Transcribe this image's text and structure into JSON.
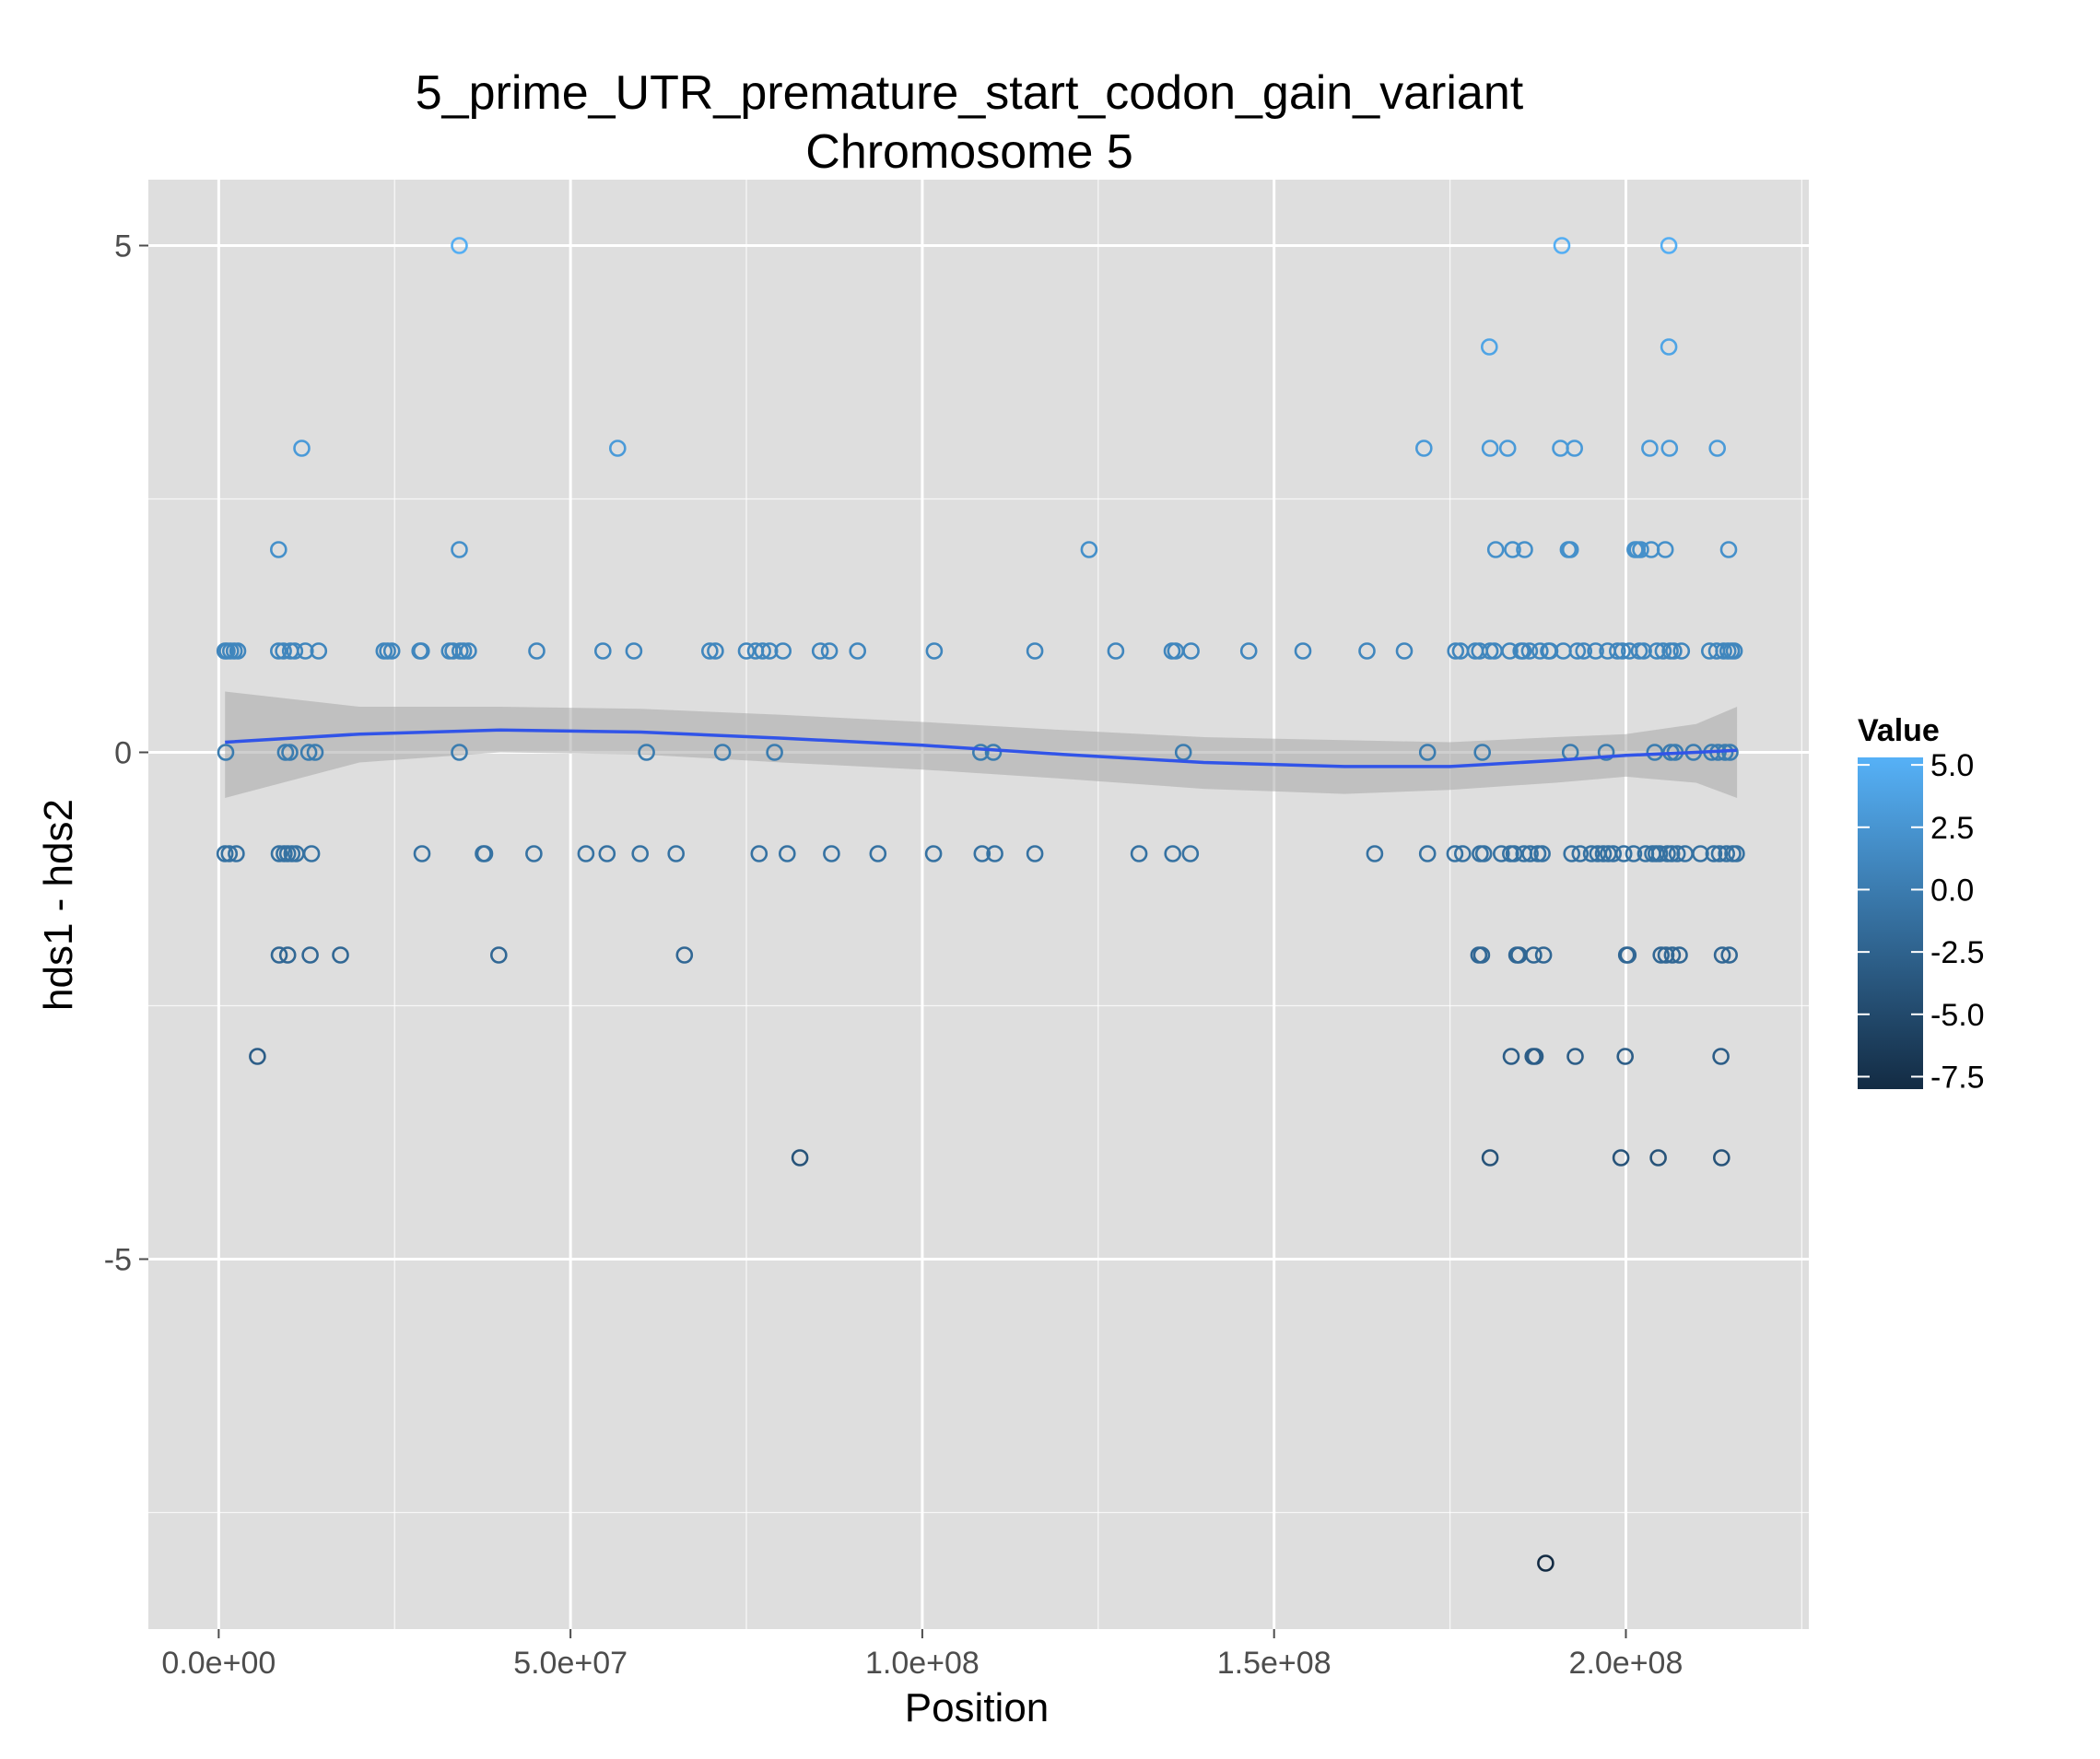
{
  "chart_data": {
    "type": "scatter",
    "title": "5_prime_UTR_premature_start_codon_gain_variant",
    "subtitle": "Chromosome 5",
    "xlabel": "Position",
    "ylabel": "hds1 - hds2",
    "xlim": [
      -10000000.0,
      226000000.0
    ],
    "ylim": [
      -8.65,
      5.65
    ],
    "x_ticks": [
      0,
      50000000,
      100000000,
      150000000,
      200000000
    ],
    "x_tick_labels": [
      "0.0e+00",
      "5.0e+07",
      "1.0e+08",
      "1.5e+08",
      "2.0e+08"
    ],
    "y_ticks": [
      5,
      0,
      -5
    ],
    "y_tick_labels": [
      "5",
      "0",
      "-5"
    ],
    "grid": true,
    "legend": {
      "title": "Value",
      "placement": "right",
      "labels": [
        "5.0",
        "2.5",
        "0.0",
        "-2.5",
        "-5.0",
        "-7.5"
      ],
      "values": [
        5,
        2.5,
        0,
        -2.5,
        -5,
        -7.5
      ],
      "range": [
        -8,
        5.3
      ]
    },
    "colors": {
      "panel": "#dedede",
      "grid": "#ffffff",
      "smooth_line": "#3154e8",
      "ribbon": "#a8a8a8",
      "high": "#56b1f7",
      "low": "#132b43"
    },
    "points": [
      {
        "x": 900000,
        "y": 1
      },
      {
        "x": 1200000,
        "y": 1
      },
      {
        "x": 1700000,
        "y": 1
      },
      {
        "x": 2200000,
        "y": 1
      },
      {
        "x": 2700000,
        "y": 1
      },
      {
        "x": 1000000,
        "y": 0
      },
      {
        "x": 900000,
        "y": -1
      },
      {
        "x": 1500000,
        "y": -1
      },
      {
        "x": 2500000,
        "y": -1
      },
      {
        "x": 5500000,
        "y": -3
      },
      {
        "x": 8500000,
        "y": 2
      },
      {
        "x": 8500000,
        "y": 1
      },
      {
        "x": 9200000,
        "y": 1
      },
      {
        "x": 10200000,
        "y": 1
      },
      {
        "x": 10800000,
        "y": 1
      },
      {
        "x": 9500000,
        "y": 0
      },
      {
        "x": 10100000,
        "y": 0
      },
      {
        "x": 8600000,
        "y": -1
      },
      {
        "x": 9300000,
        "y": -1
      },
      {
        "x": 9800000,
        "y": -1
      },
      {
        "x": 10400000,
        "y": -1
      },
      {
        "x": 11000000,
        "y": -1
      },
      {
        "x": 8600000,
        "y": -2
      },
      {
        "x": 9800000,
        "y": -2
      },
      {
        "x": 11800000,
        "y": 3
      },
      {
        "x": 12300000,
        "y": 1
      },
      {
        "x": 12800000,
        "y": 0
      },
      {
        "x": 13700000,
        "y": 0
      },
      {
        "x": 13200000,
        "y": -1
      },
      {
        "x": 13000000,
        "y": -2
      },
      {
        "x": 14200000,
        "y": 1
      },
      {
        "x": 17300000,
        "y": -2
      },
      {
        "x": 23500000,
        "y": 1
      },
      {
        "x": 24000000,
        "y": 1
      },
      {
        "x": 24600000,
        "y": 1
      },
      {
        "x": 28600000,
        "y": 1
      },
      {
        "x": 28800000,
        "y": 1
      },
      {
        "x": 28900000,
        "y": -1
      },
      {
        "x": 32800000,
        "y": 1
      },
      {
        "x": 33300000,
        "y": 1
      },
      {
        "x": 34200000,
        "y": 5
      },
      {
        "x": 34200000,
        "y": 2
      },
      {
        "x": 34300000,
        "y": 1
      },
      {
        "x": 34800000,
        "y": 1
      },
      {
        "x": 35500000,
        "y": 1
      },
      {
        "x": 34200000,
        "y": 0
      },
      {
        "x": 37600000,
        "y": -1
      },
      {
        "x": 37800000,
        "y": -1
      },
      {
        "x": 39800000,
        "y": -2
      },
      {
        "x": 44800000,
        "y": -1
      },
      {
        "x": 45200000,
        "y": 1
      },
      {
        "x": 52200000,
        "y": -1
      },
      {
        "x": 54600000,
        "y": 1
      },
      {
        "x": 55200000,
        "y": -1
      },
      {
        "x": 56700000,
        "y": 3
      },
      {
        "x": 59000000,
        "y": 1
      },
      {
        "x": 59900000,
        "y": -1
      },
      {
        "x": 60800000,
        "y": 0
      },
      {
        "x": 65000000,
        "y": -1
      },
      {
        "x": 66200000,
        "y": -2
      },
      {
        "x": 69800000,
        "y": 1
      },
      {
        "x": 70600000,
        "y": 1
      },
      {
        "x": 71600000,
        "y": 0
      },
      {
        "x": 75000000,
        "y": 1
      },
      {
        "x": 76300000,
        "y": 1
      },
      {
        "x": 76800000,
        "y": -1
      },
      {
        "x": 77300000,
        "y": 1
      },
      {
        "x": 78300000,
        "y": 1
      },
      {
        "x": 79000000,
        "y": 0
      },
      {
        "x": 80200000,
        "y": 1
      },
      {
        "x": 80800000,
        "y": -1
      },
      {
        "x": 82600000,
        "y": -4
      },
      {
        "x": 85500000,
        "y": 1
      },
      {
        "x": 86800000,
        "y": 1
      },
      {
        "x": 87100000,
        "y": -1
      },
      {
        "x": 90800000,
        "y": 1
      },
      {
        "x": 93700000,
        "y": -1
      },
      {
        "x": 101700000,
        "y": 1
      },
      {
        "x": 101600000,
        "y": -1
      },
      {
        "x": 108300000,
        "y": 0
      },
      {
        "x": 108500000,
        "y": -1
      },
      {
        "x": 110100000,
        "y": 0
      },
      {
        "x": 110300000,
        "y": -1
      },
      {
        "x": 116000000,
        "y": 1
      },
      {
        "x": 116000000,
        "y": -1
      },
      {
        "x": 123700000,
        "y": 2
      },
      {
        "x": 127500000,
        "y": 1
      },
      {
        "x": 130800000,
        "y": -1
      },
      {
        "x": 135500000,
        "y": 1
      },
      {
        "x": 136000000,
        "y": 1
      },
      {
        "x": 135600000,
        "y": -1
      },
      {
        "x": 137100000,
        "y": 0
      },
      {
        "x": 138200000,
        "y": 1
      },
      {
        "x": 138100000,
        "y": -1
      },
      {
        "x": 146400000,
        "y": 1
      },
      {
        "x": 154100000,
        "y": 1
      },
      {
        "x": 163200000,
        "y": 1
      },
      {
        "x": 164300000,
        "y": -1
      },
      {
        "x": 168500000,
        "y": 1
      },
      {
        "x": 171300000,
        "y": 3
      },
      {
        "x": 171800000,
        "y": 0
      },
      {
        "x": 171800000,
        "y": -1
      },
      {
        "x": 175800000,
        "y": 1
      },
      {
        "x": 176500000,
        "y": 1
      },
      {
        "x": 175700000,
        "y": -1
      },
      {
        "x": 176800000,
        "y": -1
      },
      {
        "x": 178600000,
        "y": 1
      },
      {
        "x": 179200000,
        "y": 1
      },
      {
        "x": 179600000,
        "y": 0
      },
      {
        "x": 179300000,
        "y": -1
      },
      {
        "x": 179800000,
        "y": -1
      },
      {
        "x": 179100000,
        "y": -2
      },
      {
        "x": 179500000,
        "y": -2
      },
      {
        "x": 180600000,
        "y": 4
      },
      {
        "x": 180700000,
        "y": 3
      },
      {
        "x": 181500000,
        "y": 2
      },
      {
        "x": 180700000,
        "y": 1
      },
      {
        "x": 181300000,
        "y": 1
      },
      {
        "x": 180700000,
        "y": -4
      },
      {
        "x": 182300000,
        "y": -1
      },
      {
        "x": 183200000,
        "y": 3
      },
      {
        "x": 183900000,
        "y": 2
      },
      {
        "x": 183700000,
        "y": -3
      },
      {
        "x": 183500000,
        "y": 1
      },
      {
        "x": 183600000,
        "y": -1
      },
      {
        "x": 184100000,
        "y": -1
      },
      {
        "x": 184500000,
        "y": -2
      },
      {
        "x": 184800000,
        "y": -2
      },
      {
        "x": 185100000,
        "y": 1
      },
      {
        "x": 185400000,
        "y": 1
      },
      {
        "x": 185500000,
        "y": -1
      },
      {
        "x": 185600000,
        "y": 2
      },
      {
        "x": 186300000,
        "y": 1
      },
      {
        "x": 186400000,
        "y": -1
      },
      {
        "x": 186800000,
        "y": -3
      },
      {
        "x": 186900000,
        "y": -2
      },
      {
        "x": 187100000,
        "y": -3
      },
      {
        "x": 187500000,
        "y": -1
      },
      {
        "x": 187800000,
        "y": 1
      },
      {
        "x": 188100000,
        "y": -1
      },
      {
        "x": 188300000,
        "y": -2
      },
      {
        "x": 188600000,
        "y": -8
      },
      {
        "x": 189000000,
        "y": 1
      },
      {
        "x": 189200000,
        "y": 1
      },
      {
        "x": 190700000,
        "y": 3
      },
      {
        "x": 190900000,
        "y": 5
      },
      {
        "x": 191100000,
        "y": 1
      },
      {
        "x": 191800000,
        "y": 2
      },
      {
        "x": 192100000,
        "y": 2
      },
      {
        "x": 192100000,
        "y": 0
      },
      {
        "x": 192300000,
        "y": -1
      },
      {
        "x": 192700000,
        "y": 3
      },
      {
        "x": 192800000,
        "y": -3
      },
      {
        "x": 193100000,
        "y": 1
      },
      {
        "x": 193500000,
        "y": -1
      },
      {
        "x": 194000000,
        "y": 1
      },
      {
        "x": 195100000,
        "y": -1
      },
      {
        "x": 195700000,
        "y": 1
      },
      {
        "x": 196000000,
        "y": -1
      },
      {
        "x": 196800000,
        "y": -1
      },
      {
        "x": 197200000,
        "y": 0
      },
      {
        "x": 197400000,
        "y": 1
      },
      {
        "x": 197500000,
        "y": -1
      },
      {
        "x": 198200000,
        "y": -1
      },
      {
        "x": 198800000,
        "y": 1
      },
      {
        "x": 199300000,
        "y": -4
      },
      {
        "x": 199500000,
        "y": 1
      },
      {
        "x": 199700000,
        "y": -1
      },
      {
        "x": 199900000,
        "y": -3
      },
      {
        "x": 200100000,
        "y": -2
      },
      {
        "x": 200300000,
        "y": -2
      },
      {
        "x": 200500000,
        "y": 1
      },
      {
        "x": 201100000,
        "y": -1
      },
      {
        "x": 201300000,
        "y": 2
      },
      {
        "x": 201600000,
        "y": 2
      },
      {
        "x": 201900000,
        "y": 1
      },
      {
        "x": 202100000,
        "y": 2
      },
      {
        "x": 202500000,
        "y": 1
      },
      {
        "x": 202800000,
        "y": -1
      },
      {
        "x": 203400000,
        "y": 3
      },
      {
        "x": 203600000,
        "y": 2
      },
      {
        "x": 203800000,
        "y": -1
      },
      {
        "x": 204100000,
        "y": 0
      },
      {
        "x": 204300000,
        "y": -1
      },
      {
        "x": 204400000,
        "y": 1
      },
      {
        "x": 204600000,
        "y": -4
      },
      {
        "x": 204800000,
        "y": -1
      },
      {
        "x": 205000000,
        "y": -2
      },
      {
        "x": 205300000,
        "y": 1
      },
      {
        "x": 205600000,
        "y": 2
      },
      {
        "x": 205700000,
        "y": -2
      },
      {
        "x": 205900000,
        "y": -1
      },
      {
        "x": 206100000,
        "y": 5
      },
      {
        "x": 206100000,
        "y": 4
      },
      {
        "x": 206200000,
        "y": 3
      },
      {
        "x": 206300000,
        "y": 1
      },
      {
        "x": 206400000,
        "y": 0
      },
      {
        "x": 206500000,
        "y": -1
      },
      {
        "x": 206600000,
        "y": -2
      },
      {
        "x": 206800000,
        "y": 1
      },
      {
        "x": 207000000,
        "y": 0
      },
      {
        "x": 207300000,
        "y": -1
      },
      {
        "x": 207600000,
        "y": -2
      },
      {
        "x": 207900000,
        "y": 1
      },
      {
        "x": 208400000,
        "y": -1
      },
      {
        "x": 209600000,
        "y": 0
      },
      {
        "x": 210600000,
        "y": -1
      },
      {
        "x": 211900000,
        "y": 1
      },
      {
        "x": 212200000,
        "y": 0
      },
      {
        "x": 212500000,
        "y": -1
      },
      {
        "x": 212900000,
        "y": 1
      },
      {
        "x": 213000000,
        "y": 3
      },
      {
        "x": 213100000,
        "y": 0
      },
      {
        "x": 213300000,
        "y": -1
      },
      {
        "x": 213500000,
        "y": -3
      },
      {
        "x": 213600000,
        "y": -4
      },
      {
        "x": 213700000,
        "y": -2
      },
      {
        "x": 213900000,
        "y": 1
      },
      {
        "x": 214100000,
        "y": 0
      },
      {
        "x": 214300000,
        "y": -1
      },
      {
        "x": 214500000,
        "y": 1
      },
      {
        "x": 214600000,
        "y": 2
      },
      {
        "x": 214700000,
        "y": -2
      },
      {
        "x": 214800000,
        "y": 0
      },
      {
        "x": 215000000,
        "y": 1
      },
      {
        "x": 215200000,
        "y": -1
      },
      {
        "x": 215400000,
        "y": 1
      },
      {
        "x": 215700000,
        "y": -1
      }
    ],
    "smooth": {
      "x": [
        900000,
        20000000,
        40000000,
        60000000,
        80000000,
        100000000,
        120000000,
        140000000,
        160000000,
        175000000,
        190000000,
        200000000,
        210000000,
        215800000
      ],
      "y": [
        0.1,
        0.18,
        0.22,
        0.2,
        0.14,
        0.07,
        -0.02,
        -0.1,
        -0.14,
        -0.14,
        -0.08,
        -0.03,
        0.0,
        0.02
      ],
      "lower": [
        -0.45,
        -0.1,
        0.0,
        -0.02,
        -0.1,
        -0.17,
        -0.26,
        -0.36,
        -0.41,
        -0.37,
        -0.3,
        -0.24,
        -0.3,
        -0.45
      ],
      "upper": [
        0.6,
        0.45,
        0.45,
        0.43,
        0.37,
        0.3,
        0.22,
        0.15,
        0.12,
        0.1,
        0.15,
        0.18,
        0.28,
        0.45
      ]
    }
  }
}
